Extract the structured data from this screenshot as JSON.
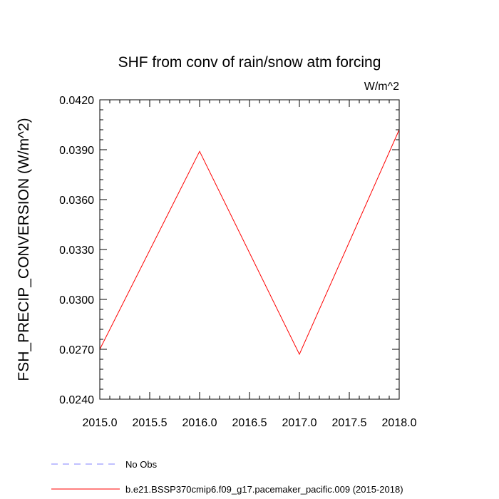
{
  "chart_data": {
    "type": "line",
    "title": "SHF from conv of rain/snow atm forcing",
    "units_label": "W/m^2",
    "ylabel": "FSH_PRECIP_CONVERSION  (W/m^2)",
    "xlabel": "",
    "xlim": [
      2015.0,
      2018.0
    ],
    "ylim": [
      0.024,
      0.042
    ],
    "x_ticks": [
      2015.0,
      2015.5,
      2016.0,
      2016.5,
      2017.0,
      2017.5,
      2018.0
    ],
    "x_tick_labels": [
      "2015.0",
      "2015.5",
      "2016.0",
      "2016.5",
      "2017.0",
      "2017.5",
      "2018.0"
    ],
    "y_ticks": [
      0.024,
      0.027,
      0.03,
      0.033,
      0.036,
      0.039,
      0.042
    ],
    "y_tick_labels": [
      "0.0240",
      "0.0270",
      "0.0300",
      "0.0330",
      "0.0360",
      "0.0390",
      "0.0420"
    ],
    "x_minor_step": 0.1,
    "y_minor_step": 0.0006,
    "grid": false,
    "legend_position": "bottom",
    "series": [
      {
        "name": "b.e21.BSSP370cmip6.f09_g17.pacemaker_pacific.009 (2015-2018)",
        "color": "#ff0000",
        "dash": "solid",
        "x": [
          2015,
          2016,
          2017,
          2018
        ],
        "y": [
          0.027,
          0.0389,
          0.0267,
          0.0402
        ]
      }
    ],
    "legend": [
      {
        "label": "No Obs",
        "color": "#8080ff",
        "dash": "dashed"
      },
      {
        "label": "b.e21.BSSP370cmip6.f09_g17.pacemaker_pacific.009 (2015-2018)",
        "color": "#ff0000",
        "dash": "solid"
      }
    ]
  }
}
